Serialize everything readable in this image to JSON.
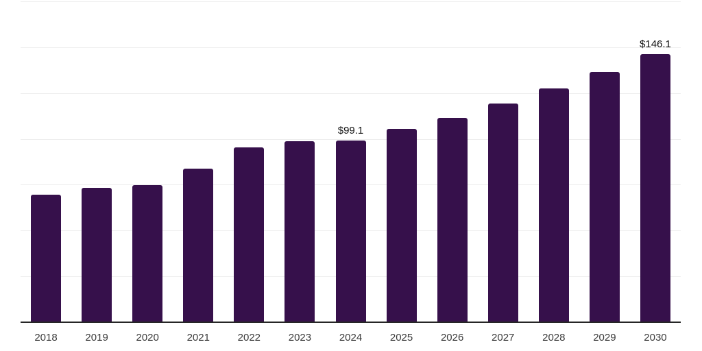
{
  "chart_data": {
    "type": "bar",
    "title": "",
    "xlabel": "",
    "ylabel": "",
    "categories": [
      "2018",
      "2019",
      "2020",
      "2021",
      "2022",
      "2023",
      "2024",
      "2025",
      "2026",
      "2027",
      "2028",
      "2029",
      "2030"
    ],
    "values": [
      69.4,
      73.3,
      74.9,
      83.9,
      95.3,
      98.6,
      99.1,
      105.5,
      111.5,
      119.3,
      127.7,
      136.4,
      146.1
    ],
    "annotations": [
      {
        "category": "2024",
        "text": "$99.1"
      },
      {
        "category": "2030",
        "text": "$146.1"
      }
    ],
    "ylim": [
      0,
      175
    ],
    "gridline_step": 25,
    "grid": true,
    "y_tick_labels_visible": false,
    "legend": "none",
    "colors": {
      "bar_fill": "#36104b",
      "gridline": "#eeeeee",
      "axis_line": "#262626",
      "data_label_text": "#111111",
      "x_tick_text": "#3a3a3a",
      "background": "#ffffff"
    }
  }
}
